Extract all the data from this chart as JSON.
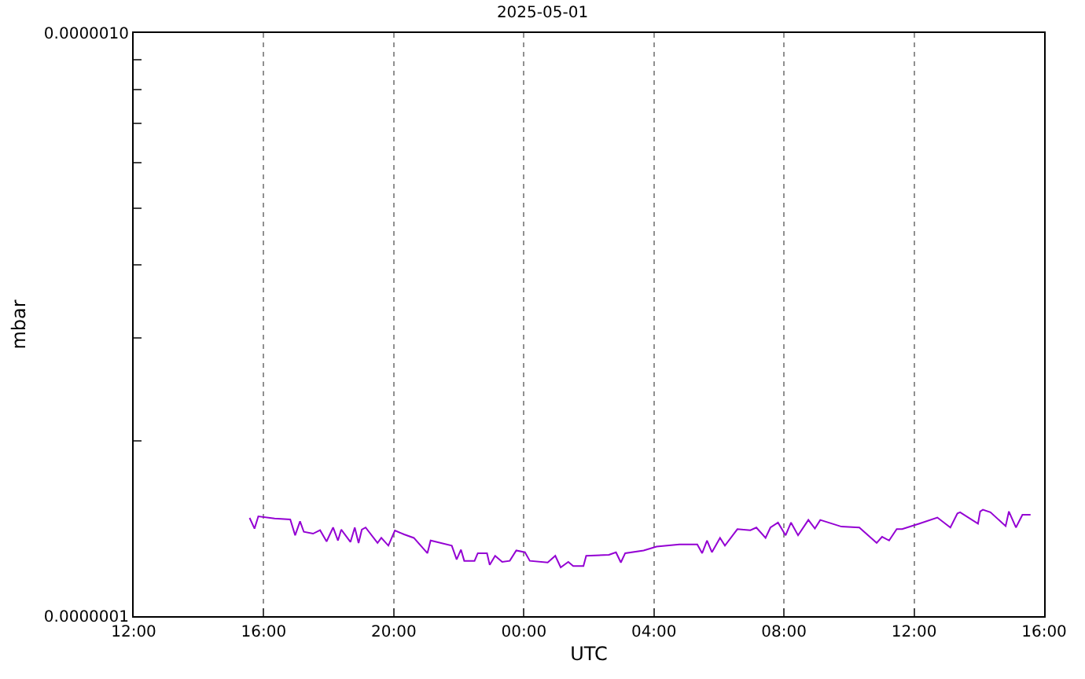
{
  "chart_data": {
    "type": "line",
    "title": "2025-05-01",
    "xlabel": "UTC",
    "ylabel": "mbar",
    "x": [
      "2025-04-30T15:34",
      "2025-04-30T15:43",
      "2025-04-30T15:50",
      "2025-04-30T16:20",
      "2025-04-30T16:49",
      "2025-04-30T16:58",
      "2025-04-30T17:07",
      "2025-04-30T17:14",
      "2025-04-30T17:31",
      "2025-04-30T17:44",
      "2025-04-30T17:56",
      "2025-04-30T18:08",
      "2025-04-30T18:17",
      "2025-04-30T18:23",
      "2025-04-30T18:40",
      "2025-04-30T18:48",
      "2025-04-30T18:55",
      "2025-04-30T19:01",
      "2025-04-30T19:08",
      "2025-04-30T19:30",
      "2025-04-30T19:37",
      "2025-04-30T19:50",
      "2025-04-30T20:02",
      "2025-04-30T20:19",
      "2025-04-30T20:37",
      "2025-04-30T21:02",
      "2025-04-30T21:08",
      "2025-04-30T21:47",
      "2025-04-30T21:56",
      "2025-04-30T22:04",
      "2025-04-30T22:10",
      "2025-04-30T22:29",
      "2025-04-30T22:35",
      "2025-04-30T22:52",
      "2025-04-30T22:57",
      "2025-04-30T23:07",
      "2025-04-30T23:20",
      "2025-04-30T23:34",
      "2025-04-30T23:46",
      "2025-05-01T00:02",
      "2025-05-01T00:11",
      "2025-05-01T00:44",
      "2025-05-01T00:58",
      "2025-05-01T01:08",
      "2025-05-01T01:22",
      "2025-05-01T01:31",
      "2025-05-01T01:50",
      "2025-05-01T01:55",
      "2025-05-01T02:37",
      "2025-05-01T02:50",
      "2025-05-01T02:59",
      "2025-05-01T03:07",
      "2025-05-01T03:41",
      "2025-05-01T04:05",
      "2025-05-01T04:47",
      "2025-05-01T05:20",
      "2025-05-01T05:29",
      "2025-05-01T05:38",
      "2025-05-01T05:47",
      "2025-05-01T06:02",
      "2025-05-01T06:11",
      "2025-05-01T06:34",
      "2025-05-01T06:58",
      "2025-05-01T07:09",
      "2025-05-01T07:26",
      "2025-05-01T07:35",
      "2025-05-01T07:49",
      "2025-05-01T08:03",
      "2025-05-01T08:13",
      "2025-05-01T08:26",
      "2025-05-01T08:45",
      "2025-05-01T08:57",
      "2025-05-01T09:07",
      "2025-05-01T09:46",
      "2025-05-01T10:19",
      "2025-05-01T10:46",
      "2025-05-01T10:51",
      "2025-05-01T11:01",
      "2025-05-01T11:14",
      "2025-05-01T11:28",
      "2025-05-01T11:38",
      "2025-05-01T12:10",
      "2025-05-01T12:43",
      "2025-05-01T13:07",
      "2025-05-01T13:20",
      "2025-05-01T13:25",
      "2025-05-01T13:58",
      "2025-05-01T14:02",
      "2025-05-01T14:07",
      "2025-05-01T14:21",
      "2025-05-01T14:49",
      "2025-05-01T14:55",
      "2025-05-01T15:08",
      "2025-05-01T15:20",
      "2025-05-01T15:26",
      "2025-05-01T15:35"
    ],
    "series": [
      {
        "color": "#9400d3",
        "values": [
          1.474e-07,
          1.413e-07,
          1.483e-07,
          1.471e-07,
          1.465e-07,
          1.376e-07,
          1.454e-07,
          1.395e-07,
          1.385e-07,
          1.404e-07,
          1.343e-07,
          1.419e-07,
          1.348e-07,
          1.407e-07,
          1.34e-07,
          1.419e-07,
          1.335e-07,
          1.407e-07,
          1.419e-07,
          1.335e-07,
          1.362e-07,
          1.321e-07,
          1.402e-07,
          1.381e-07,
          1.362e-07,
          1.282e-07,
          1.348e-07,
          1.321e-07,
          1.251e-07,
          1.3e-07,
          1.244e-07,
          1.244e-07,
          1.282e-07,
          1.282e-07,
          1.224e-07,
          1.269e-07,
          1.239e-07,
          1.244e-07,
          1.296e-07,
          1.287e-07,
          1.244e-07,
          1.236e-07,
          1.269e-07,
          1.212e-07,
          1.239e-07,
          1.219e-07,
          1.219e-07,
          1.269e-07,
          1.274e-07,
          1.287e-07,
          1.236e-07,
          1.282e-07,
          1.296e-07,
          1.316e-07,
          1.327e-07,
          1.327e-07,
          1.282e-07,
          1.348e-07,
          1.287e-07,
          1.362e-07,
          1.321e-07,
          1.41e-07,
          1.404e-07,
          1.419e-07,
          1.362e-07,
          1.419e-07,
          1.447e-07,
          1.376e-07,
          1.447e-07,
          1.376e-07,
          1.462e-07,
          1.413e-07,
          1.462e-07,
          1.424e-07,
          1.419e-07,
          1.348e-07,
          1.335e-07,
          1.368e-07,
          1.348e-07,
          1.41e-07,
          1.41e-07,
          1.441e-07,
          1.476e-07,
          1.419e-07,
          1.5e-07,
          1.507e-07,
          1.441e-07,
          1.512e-07,
          1.522e-07,
          1.507e-07,
          1.427e-07,
          1.512e-07,
          1.419e-07,
          1.492e-07,
          1.492e-07,
          1.492e-07
        ]
      }
    ],
    "xlim": [
      "2025-04-30T12:00",
      "2025-05-01T16:00"
    ],
    "xticks": [
      {
        "value": "2025-04-30T12:00",
        "label": "12:00"
      },
      {
        "value": "2025-04-30T16:00",
        "label": "16:00"
      },
      {
        "value": "2025-04-30T20:00",
        "label": "20:00"
      },
      {
        "value": "2025-05-01T00:00",
        "label": "00:00"
      },
      {
        "value": "2025-05-01T04:00",
        "label": "04:00"
      },
      {
        "value": "2025-05-01T08:00",
        "label": "08:00"
      },
      {
        "value": "2025-05-01T12:00",
        "label": "12:00"
      },
      {
        "value": "2025-05-01T16:00",
        "label": "16:00"
      }
    ],
    "ylim": [
      1e-07,
      1e-06
    ],
    "log": true,
    "yticks": [
      {
        "value": 1e-07,
        "label": "0.0000001"
      },
      {
        "value": 2e-07,
        "label": null
      },
      {
        "value": 3e-07,
        "label": null
      },
      {
        "value": 4e-07,
        "label": null
      },
      {
        "value": 5e-07,
        "label": null
      },
      {
        "value": 6e-07,
        "label": null
      },
      {
        "value": 7e-07,
        "label": null
      },
      {
        "value": 8e-07,
        "label": null
      },
      {
        "value": 9e-07,
        "label": null
      },
      {
        "value": 1e-06,
        "label": "0.0000010"
      }
    ],
    "grid": "x",
    "line_style": "solid",
    "marker": "none"
  }
}
